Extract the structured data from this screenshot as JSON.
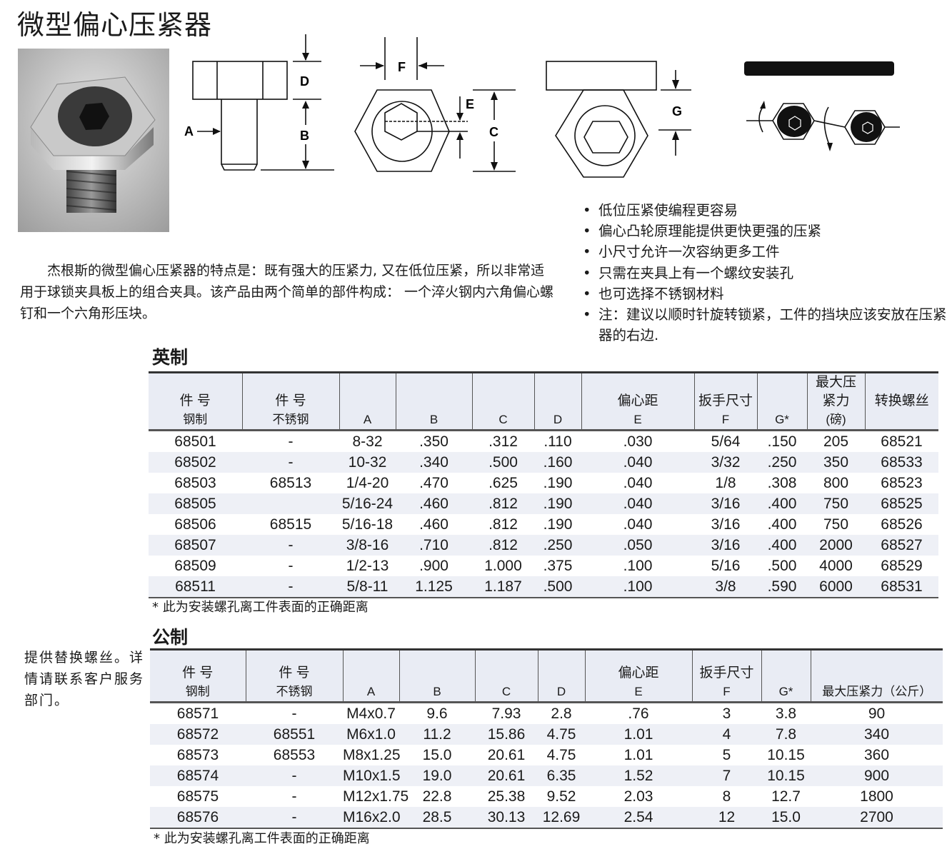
{
  "title": "微型偏心压紧器",
  "diagram_labels": {
    "a": "A",
    "b": "B",
    "c": "C",
    "d": "D",
    "e": "E",
    "f": "F",
    "g": "G"
  },
  "intro": "杰根斯的微型偏心压紧器的特点是：既有强大的压紧力, 又在低位压紧，所以非常适用于球锁夹具板上的组合夹具。该产品由两个简单的部件构成： 一个淬火钢内六角偏心螺钉和一个六角形压块。",
  "features": [
    "低位压紧使编程更容易",
    "偏心凸轮原理能提供更快更强的压紧",
    "小尺寸允许一次容纳更多工件",
    "只需在夹具上有一个螺纹安装孔",
    "也可选择不锈钢材料",
    "注：建议以顺时针旋转锁紧，工件的挡块应该安放在压紧器的右边."
  ],
  "imperial": {
    "heading": "英制",
    "headers": [
      [
        "件 号",
        "钢制"
      ],
      [
        "件 号",
        "不锈钢"
      ],
      [
        "",
        "A"
      ],
      [
        "",
        "B"
      ],
      [
        "",
        "C"
      ],
      [
        "",
        "D"
      ],
      [
        "偏心距",
        "E"
      ],
      [
        "扳手尺寸",
        "F"
      ],
      [
        "",
        "G*"
      ],
      [
        "最大压",
        "紧力",
        "(磅)"
      ],
      [
        "转换螺丝",
        ""
      ]
    ],
    "rows": [
      [
        "68501",
        "-",
        "8-32",
        ".350",
        ".312",
        ".110",
        ".030",
        "5/64",
        ".150",
        "205",
        "68521"
      ],
      [
        "68502",
        "-",
        "10-32",
        ".340",
        ".500",
        ".160",
        ".040",
        "3/32",
        ".250",
        "350",
        "68533"
      ],
      [
        "68503",
        "68513",
        "1/4-20",
        ".470",
        ".625",
        ".190",
        ".040",
        "1/8",
        ".308",
        "800",
        "68523"
      ],
      [
        "68505",
        "",
        "5/16-24",
        ".460",
        ".812",
        ".190",
        ".040",
        "3/16",
        ".400",
        "750",
        "68525"
      ],
      [
        "68506",
        "68515",
        "5/16-18",
        ".460",
        ".812",
        ".190",
        ".040",
        "3/16",
        ".400",
        "750",
        "68526"
      ],
      [
        "68507",
        "-",
        "3/8-16",
        ".710",
        ".812",
        ".250",
        ".050",
        "3/16",
        ".400",
        "2000",
        "68527"
      ],
      [
        "68509",
        "-",
        "1/2-13",
        ".900",
        "1.000",
        ".375",
        ".100",
        "5/16",
        ".500",
        "4000",
        "68529"
      ],
      [
        "68511",
        "-",
        "5/8-11",
        "1.125",
        "1.187",
        ".500",
        ".100",
        "3/8",
        ".590",
        "6000",
        "68531"
      ]
    ],
    "footnote": "* 此为安装螺孔离工件表面的正确距离"
  },
  "metric": {
    "heading": "公制",
    "side_note": "提供替换螺丝。详情请联系客户服务部门。",
    "headers": [
      [
        "件 号",
        "钢制"
      ],
      [
        "件 号",
        "不锈钢"
      ],
      [
        "",
        "A"
      ],
      [
        "",
        "B"
      ],
      [
        "",
        "C"
      ],
      [
        "",
        "D"
      ],
      [
        "偏心距",
        "E"
      ],
      [
        "扳手尺寸",
        "F"
      ],
      [
        "",
        "G*"
      ],
      [
        "",
        "最大压紧力（公斤）"
      ]
    ],
    "rows": [
      [
        "68571",
        "-",
        "M4x0.7",
        "9.6",
        "7.93",
        "2.8",
        ".76",
        "3",
        "3.8",
        "90"
      ],
      [
        "68572",
        "68551",
        "M6x1.0",
        "11.2",
        "15.86",
        "4.75",
        "1.01",
        "4",
        "7.8",
        "340"
      ],
      [
        "68573",
        "68553",
        "M8x1.25",
        "15.0",
        "20.61",
        "4.75",
        "1.01",
        "5",
        "10.15",
        "360"
      ],
      [
        "68574",
        "-",
        "M10x1.5",
        "19.0",
        "20.61",
        "6.35",
        "1.52",
        "7",
        "10.15",
        "900"
      ],
      [
        "68575",
        "-",
        "M12x1.75",
        "22.8",
        "25.38",
        "9.52",
        "2.03",
        "8",
        "12.7",
        "1800"
      ],
      [
        "68576",
        "-",
        "M16x2.0",
        "28.5",
        "30.13",
        "12.69",
        "2.54",
        "12",
        "15.0",
        "2700"
      ]
    ],
    "footnote": "* 此为安装螺孔离工件表面的正确距离"
  },
  "colors": {
    "header_bg": "#e9ecf4",
    "row_alt": "#eef0f6"
  }
}
